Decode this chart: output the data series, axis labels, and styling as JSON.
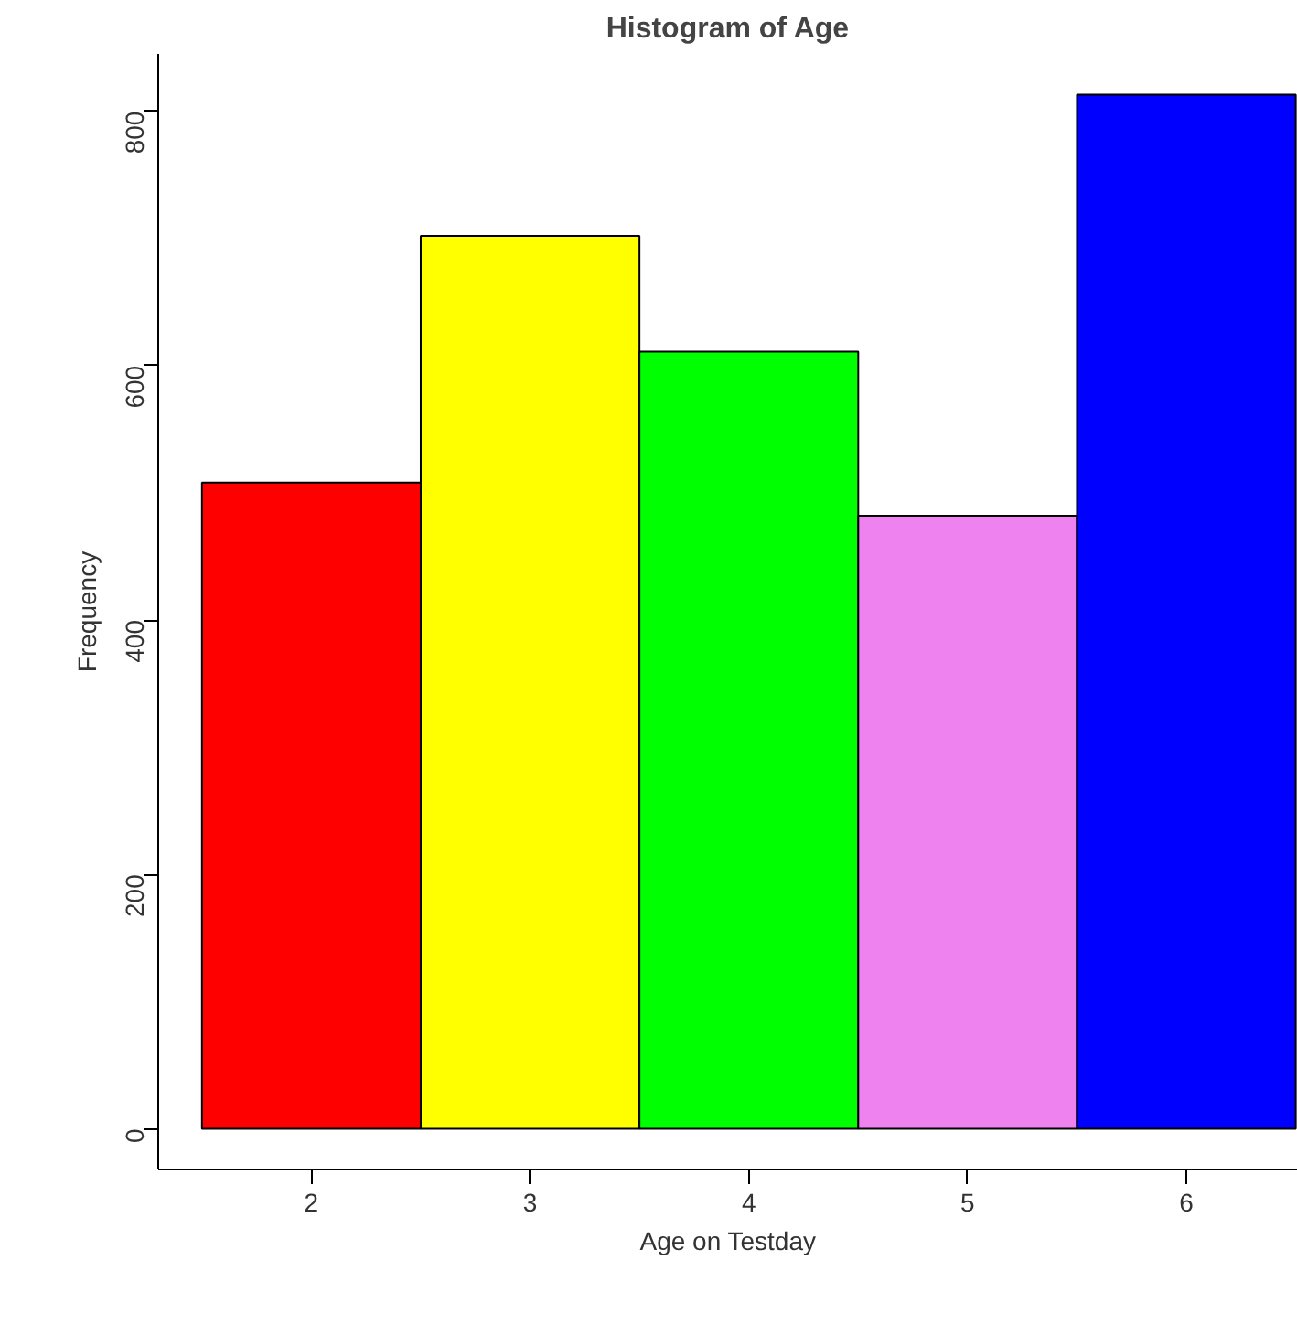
{
  "chart_data": {
    "type": "histogram",
    "title": "Histogram of Age",
    "xlabel": "Age on Testday",
    "ylabel": "Frequency",
    "bins": [
      1.5,
      2.5,
      3.5,
      4.5,
      5.5,
      6.5
    ],
    "values": [
      508,
      702,
      611,
      482,
      813
    ],
    "colors": [
      "#ff0000",
      "#ffff00",
      "#00ff00",
      "#ee82ee",
      "#0000ff"
    ],
    "xlim": [
      1.3,
      6.51
    ],
    "ylim": [
      -32,
      845
    ],
    "xticks": [
      2,
      3,
      4,
      5,
      6
    ],
    "yticks": [
      0,
      200,
      400,
      600,
      800
    ],
    "grid": false
  }
}
